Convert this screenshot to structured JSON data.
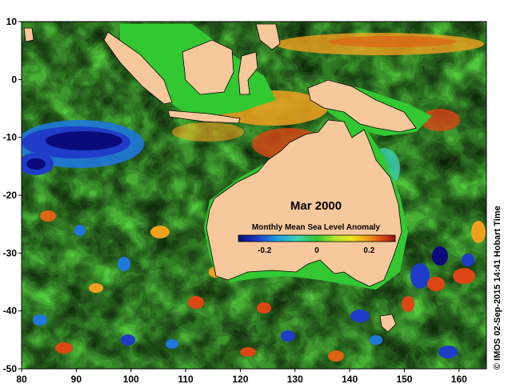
{
  "map": {
    "title": "Mar 2000",
    "colorbar": {
      "label": "Monthly Mean Sea Level Anomaly",
      "ticks": [
        "-0.2",
        "0",
        "0.2"
      ],
      "tick_values": [
        -0.2,
        0,
        0.2
      ],
      "range": [
        -0.3,
        0.3
      ],
      "colors": [
        "#0a0a7a",
        "#1e3cc8",
        "#1ea0e6",
        "#3cd2b4",
        "#32c832",
        "#b4e628",
        "#f0e61e",
        "#f0a01e",
        "#dc4614",
        "#8c1410"
      ]
    },
    "credit": "© IMOS 02-Sep-2015 14:41 Hobart Time",
    "lon_ticks": [
      "80",
      "90",
      "100",
      "110",
      "120",
      "130",
      "140",
      "150",
      "160"
    ],
    "lat_ticks": [
      "10",
      "0",
      "-10",
      "-20",
      "-30",
      "-40",
      "-50"
    ],
    "lon_range": [
      80,
      165
    ],
    "lat_range": [
      -50,
      10
    ],
    "colors": {
      "land": "#f7c89b",
      "shelf": "#32c832",
      "coastline": "#000000"
    }
  }
}
